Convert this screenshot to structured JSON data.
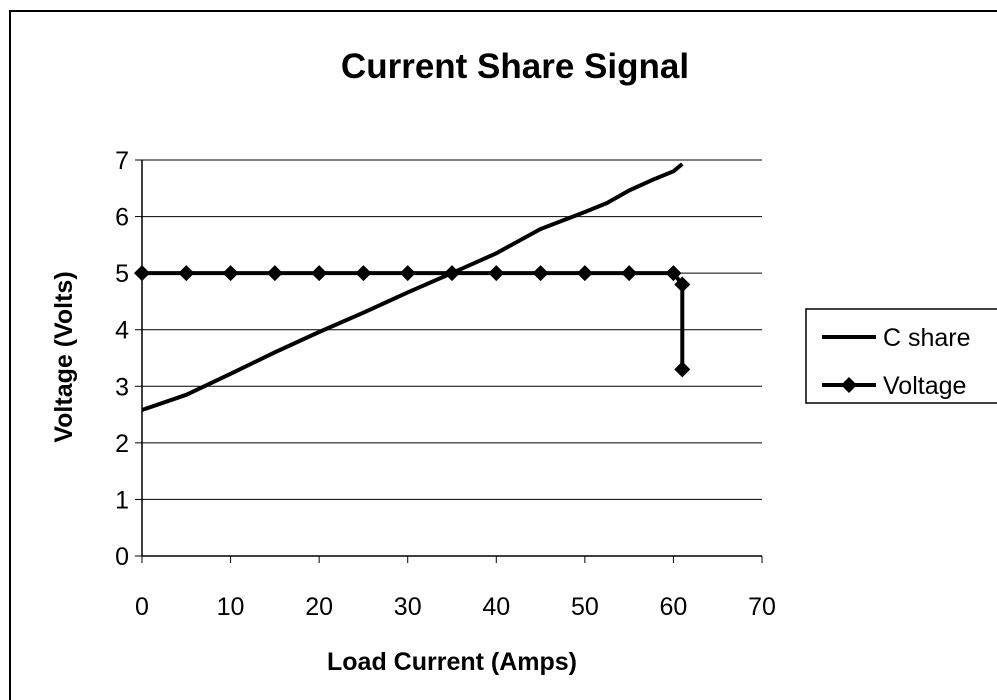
{
  "chart_data": {
    "type": "line",
    "title": "Current Share Signal",
    "xlabel": "Load Current (Amps)",
    "ylabel": "Voltage (Volts)",
    "xlim": [
      0,
      70
    ],
    "ylim": [
      0,
      7
    ],
    "xticks": [
      0,
      10,
      20,
      30,
      40,
      50,
      60,
      70
    ],
    "yticks": [
      0,
      1,
      2,
      3,
      4,
      5,
      6,
      7
    ],
    "grid": "horizontal",
    "legend_position": "right",
    "series": [
      {
        "name": "C share",
        "color": "#000000",
        "marker": "none",
        "x": [
          0,
          5,
          10,
          15,
          20,
          25,
          30,
          35,
          40,
          45,
          50,
          52.5,
          55,
          57.5,
          60,
          61
        ],
        "y": [
          2.58,
          2.85,
          3.22,
          3.6,
          3.96,
          4.3,
          4.66,
          5.0,
          5.35,
          5.78,
          6.08,
          6.24,
          6.46,
          6.64,
          6.8,
          6.93
        ]
      },
      {
        "name": "Voltage",
        "color": "#000000",
        "marker": "diamond",
        "x": [
          0,
          5,
          10,
          15,
          20,
          25,
          30,
          35,
          40,
          45,
          50,
          55,
          60,
          61,
          61
        ],
        "y": [
          5,
          5,
          5,
          5,
          5,
          5,
          5,
          5,
          5,
          5,
          5,
          5,
          5,
          4.8,
          3.3
        ]
      }
    ]
  }
}
